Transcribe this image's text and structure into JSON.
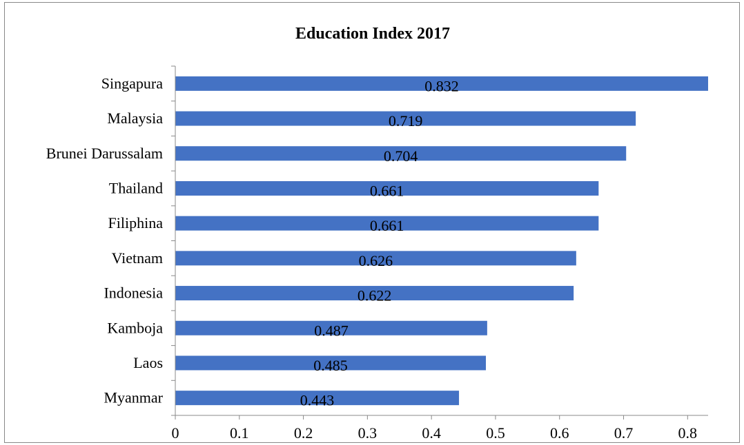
{
  "chart_data": {
    "type": "bar",
    "orientation": "horizontal",
    "title": "Education Index 2017",
    "xlabel": "",
    "ylabel": "",
    "categories": [
      "Singapura",
      "Malaysia",
      "Brunei Darussalam",
      "Thailand",
      "Filiphina",
      "Vietnam",
      "Indonesia",
      "Kamboja",
      "Laos",
      "Myanmar"
    ],
    "values": [
      0.832,
      0.719,
      0.704,
      0.661,
      0.661,
      0.626,
      0.622,
      0.487,
      0.485,
      0.443
    ],
    "data_labels": [
      "0.832",
      "0.719",
      "0.704",
      "0.661",
      "0.661",
      "0.626",
      "0.622",
      "0.487",
      "0.485",
      "0.443"
    ],
    "xlim": [
      0,
      0.832
    ],
    "x_ticks": [
      0,
      0.1,
      0.2,
      0.3,
      0.4,
      0.5,
      0.6,
      0.7,
      0.8
    ],
    "x_tick_labels": [
      "0",
      "0.1",
      "0.2",
      "0.3",
      "0.4",
      "0.5",
      "0.6",
      "0.7",
      "0.8"
    ],
    "grid": false,
    "legend": "none",
    "bar_color": "#4472C4",
    "axis_color": "#888888"
  }
}
